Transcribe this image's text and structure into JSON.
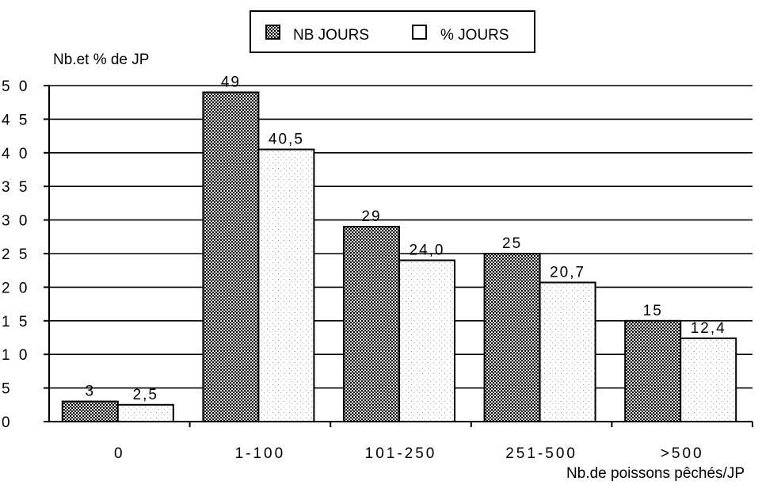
{
  "chart_data": {
    "type": "bar",
    "categories": [
      "0",
      "1-100",
      "101-250",
      "251-500",
      ">500"
    ],
    "series": [
      {
        "name": "NB JOURS",
        "values": [
          3,
          49,
          29,
          25,
          15
        ],
        "labels": [
          "3",
          "49",
          "29",
          "25",
          "15"
        ],
        "pattern": "dense-dots"
      },
      {
        "name": "% JOURS",
        "values": [
          2.5,
          40.5,
          24.0,
          20.7,
          12.4
        ],
        "labels": [
          "2,5",
          "40,5",
          "24,0",
          "20,7",
          "12,4"
        ],
        "pattern": "sparse-stipple"
      }
    ],
    "ylabel": "Nb.et % de JP",
    "xlabel": "Nb.de poissons pêchés/JP",
    "ylim": [
      0,
      50
    ],
    "yticks": [
      0,
      5,
      10,
      15,
      20,
      25,
      30,
      35,
      40,
      45,
      50
    ],
    "ytick_labels": [
      "0",
      "5",
      "1 0",
      "1 5",
      "2 0",
      "2 5",
      "3 0",
      "3 5",
      "4 0",
      "4 5",
      "5 0"
    ],
    "grid": true,
    "legend_position": "top-center"
  }
}
